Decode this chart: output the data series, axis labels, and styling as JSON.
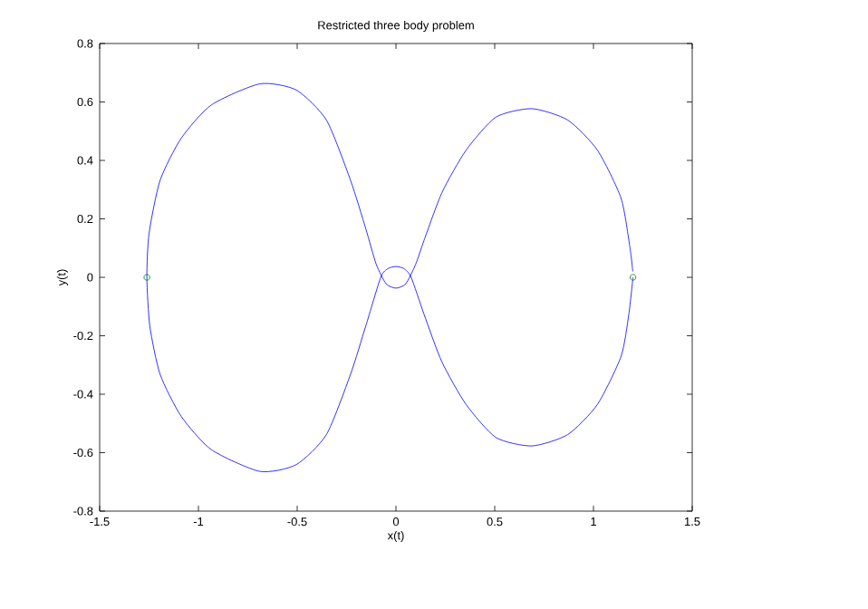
{
  "chart_data": {
    "type": "line",
    "title": "Restricted three body problem",
    "xlabel": "x(t)",
    "ylabel": "y(t)",
    "xlim": [
      -1.5,
      1.5
    ],
    "ylim": [
      -0.8,
      0.8
    ],
    "xticks": [
      -1.5,
      -1,
      -0.5,
      0,
      0.5,
      1,
      1.5
    ],
    "yticks": [
      -0.8,
      -0.6,
      -0.4,
      -0.2,
      0,
      0.2,
      0.4,
      0.6,
      0.8
    ],
    "series": [
      {
        "color": "#0000ff",
        "x": [
          1.2,
          1.179,
          1.14,
          1.02,
          0.87,
          0.688,
          0.506,
          0.355,
          0.233,
          0.142,
          0.077,
          0.04,
          0,
          -0.04,
          -0.077,
          -0.153,
          -0.23,
          -0.352,
          -0.505,
          -0.689,
          -0.934,
          -1.087,
          -1.194,
          -1.246,
          -1.261,
          -1.25,
          -1.194,
          -1.087,
          -0.934,
          -0.689,
          -0.505,
          -0.352,
          -0.23,
          -0.153,
          -0.1,
          -0.05,
          0,
          0.05,
          0.1,
          0.142,
          0.233,
          0.355,
          0.506,
          0.688,
          0.87,
          1.02,
          1.14,
          1.185,
          1.199
        ],
        "values": [
          0,
          -0.126,
          -0.27,
          -0.435,
          -0.538,
          -0.577,
          -0.548,
          -0.435,
          -0.29,
          -0.126,
          0,
          0.03,
          0.037,
          0.03,
          0,
          -0.167,
          -0.332,
          -0.538,
          -0.641,
          -0.664,
          -0.59,
          -0.476,
          -0.332,
          -0.167,
          0,
          0.15,
          0.332,
          0.476,
          0.59,
          0.662,
          0.641,
          0.538,
          0.332,
          0.167,
          0.045,
          -0.022,
          -0.037,
          -0.022,
          0.045,
          0.126,
          0.29,
          0.435,
          0.548,
          0.577,
          0.538,
          0.435,
          0.27,
          0.1,
          0.02
        ]
      },
      {
        "type": "scatter",
        "color": "#008000",
        "marker": "circle",
        "x": [
          -1.261,
          1.2
        ],
        "values": [
          0,
          0
        ]
      }
    ]
  }
}
